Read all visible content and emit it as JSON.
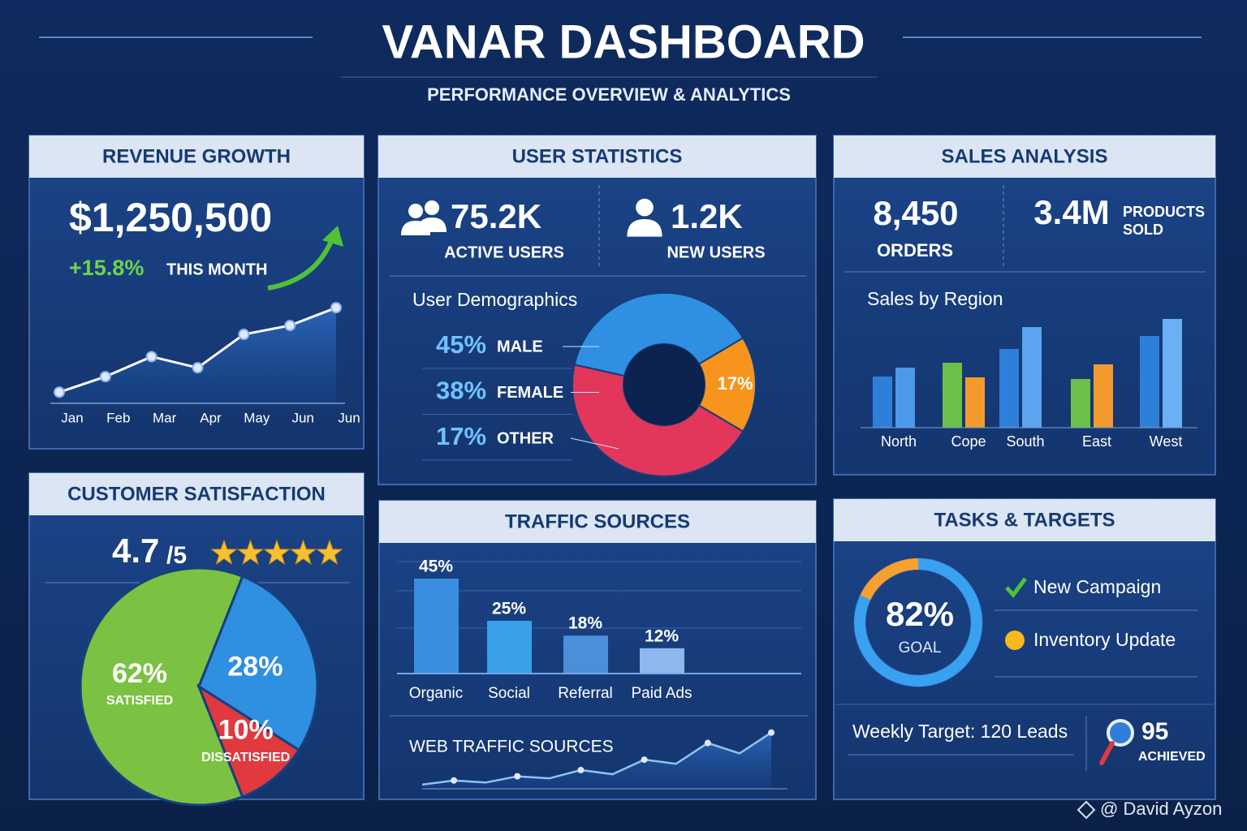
{
  "header": {
    "title": "VANAR DASHBOARD",
    "subtitle": "PERFORMANCE OVERVIEW & ANALYTICS"
  },
  "revenue": {
    "title": "REVENUE GROWTH",
    "total": "$1,250,500",
    "change": "+15.8%",
    "period": "THIS MONTH",
    "chart": {
      "type": "line",
      "categories": [
        "Jan",
        "Feb",
        "Mar",
        "Apr",
        "May",
        "Jun",
        "Jun"
      ],
      "values": [
        10,
        24,
        42,
        32,
        62,
        70,
        86
      ],
      "color": "#ffffff",
      "ylim": [
        0,
        100
      ]
    }
  },
  "users": {
    "title": "USER STATISTICS",
    "active": "75.2K",
    "active_label": "ACTIVE USERS",
    "new": "1.2K",
    "new_label": "NEW USERS",
    "demographics": {
      "type": "donut",
      "title": "User Demographics",
      "categories": [
        "MALE",
        "FEMALE",
        "OTHER"
      ],
      "values": [
        45,
        38,
        17
      ],
      "value_labels": [
        "45%",
        "38%",
        "17%"
      ],
      "colors": [
        "#e2365a",
        "#2f8fe3",
        "#f7941d"
      ]
    }
  },
  "sales": {
    "title": "SALES ANALYSIS",
    "orders": "8,450",
    "orders_label": "ORDERS",
    "products": "3.4M",
    "products_label": [
      "PRODUCTS",
      "SOLD"
    ],
    "chart": {
      "type": "bar",
      "title": "Sales by Region",
      "categories": [
        "North",
        "Cope",
        "South",
        "East",
        "West"
      ],
      "ylim": [
        0,
        140
      ],
      "series": [
        {
          "values": [
            63,
            80,
            97,
            60,
            113
          ],
          "colors": [
            "#2e7fd9",
            "#6cc04a",
            "#2e7fd9",
            "#6cc04a",
            "#2e7fd9"
          ]
        },
        {
          "values": [
            74,
            62,
            124,
            78,
            134
          ],
          "colors": [
            "#4c98ea",
            "#f39a2d",
            "#5aa4f0",
            "#f39a2d",
            "#6ab0f5"
          ]
        }
      ]
    }
  },
  "satisfaction": {
    "title": "CUSTOMER SATISFACTION",
    "rating": "4.7",
    "rating_scale": "/5",
    "chart": {
      "type": "pie",
      "categories": [
        "SATISFIED",
        null,
        "DISSATISFIED"
      ],
      "values": [
        62,
        28,
        10
      ],
      "value_labels": [
        "62%",
        "28%",
        "10%"
      ],
      "colors": [
        "#7cc242",
        "#2f8fe0",
        "#e0393e"
      ]
    }
  },
  "traffic": {
    "title": "TRAFFIC SOURCES",
    "chart": {
      "type": "bar",
      "categories": [
        "Organic",
        "Social",
        "Referral",
        "Paid Ads"
      ],
      "values": [
        45,
        25,
        18,
        12
      ],
      "value_labels": [
        "45%",
        "25%",
        "18%",
        "12%"
      ],
      "colors": [
        "#3b8de0",
        "#3aa0e8",
        "#4b8fd8",
        "#8db8ee"
      ],
      "ylim": [
        0,
        50
      ]
    },
    "web": {
      "type": "line",
      "title": "WEB TRAFFIC SOURCES",
      "values": [
        2,
        4,
        3,
        6,
        5,
        9,
        7,
        14,
        12,
        22,
        17,
        27
      ],
      "ylim": [
        0,
        30
      ],
      "color": "#8fc3f0"
    }
  },
  "tasks": {
    "title": "TASKS & TARGETS",
    "goal": {
      "type": "gauge",
      "value": 82,
      "value_label": "82%",
      "label": "GOAL",
      "ylim": [
        0,
        100
      ],
      "color": "#3aa0f0",
      "rest_color": "#f7a030"
    },
    "items": [
      "New Campaign",
      "Inventory Update"
    ],
    "weekly_target": "Weekly Target: 120 Leads",
    "achieved": "95",
    "achieved_label": "ACHIEVED"
  },
  "watermark": "@ David Ayzon"
}
